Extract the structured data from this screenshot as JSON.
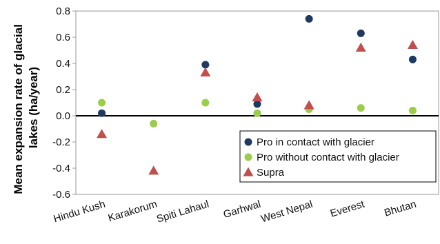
{
  "chart_data": {
    "type": "scatter",
    "ylabel": [
      "Mean expansion rate of glacial",
      "lakes (ha/year)"
    ],
    "ylim": [
      -0.6,
      0.8
    ],
    "yticks": [
      "0.8",
      "0.6",
      "0.4",
      "0.2",
      "0.0",
      "-0.2",
      "-0.4",
      "-0.6"
    ],
    "categories": [
      "Hindu Kush",
      "Karakorum",
      "Spiti Lahaul",
      "Garhwal",
      "West Nepal",
      "Everest",
      "Bhutan"
    ],
    "legend_position": "bottom-right",
    "series": [
      {
        "name": "Pro in contact with glacier",
        "marker": "circle",
        "color": "#1f3a5f",
        "values": [
          0.02,
          null,
          0.39,
          0.09,
          0.74,
          0.63,
          0.43
        ]
      },
      {
        "name": "Pro without contact with glacier",
        "marker": "circle",
        "color": "#9acd4a",
        "values": [
          0.1,
          -0.06,
          0.1,
          0.02,
          0.05,
          0.06,
          0.04
        ]
      },
      {
        "name": "Supra",
        "marker": "triangle",
        "color": "#c0504d",
        "values": [
          -0.14,
          -0.42,
          0.33,
          0.14,
          0.08,
          0.52,
          0.54
        ]
      }
    ]
  }
}
